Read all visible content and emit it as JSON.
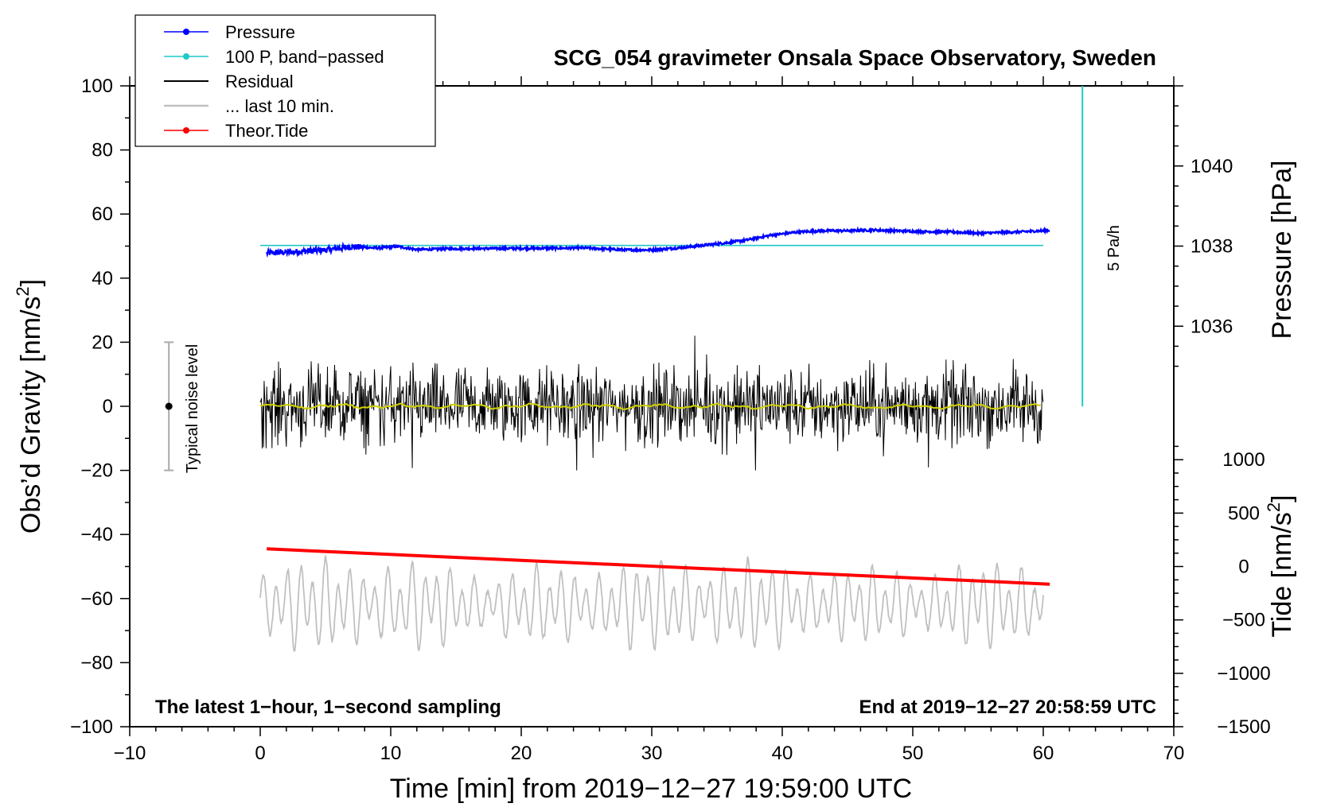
{
  "chart_data": {
    "type": "line",
    "title": "SCG_054 gravimeter Onsala Space Observatory, Sweden",
    "xlabel": "Time [min] from 2019−12−27 19:59:00 UTC",
    "ylabel_left_main": "Obs’d Gravity [nm/s",
    "ylabel_left_sup": "2",
    "ylabel_left_end": "]",
    "ylabel_right_pressure": "Pressure [hPa]",
    "ylabel_right_tide_main": "Tide [nm/s",
    "ylabel_right_tide_sup": "2",
    "ylabel_right_tide_end": "]",
    "xlim": [
      -10,
      70
    ],
    "ylim": [
      -100,
      100
    ],
    "xticks": [
      -10,
      0,
      10,
      20,
      30,
      40,
      50,
      60,
      70
    ],
    "xtick_labels": [
      "−10",
      "0",
      "10",
      "20",
      "30",
      "40",
      "50",
      "60",
      "70"
    ],
    "yticks": [
      -100,
      -80,
      -60,
      -40,
      -20,
      0,
      20,
      40,
      60,
      80,
      100
    ],
    "ytick_labels": [
      "−100",
      "−80",
      "−60",
      "−40",
      "−20",
      "0",
      "20",
      "40",
      "60",
      "80",
      "100"
    ],
    "pressure_axis": {
      "ticks": [
        1036,
        1038,
        1040
      ],
      "tick_labels": [
        "1036",
        "1038",
        "1040"
      ],
      "gravity_at_1038": 50,
      "gravity_per_hPa": 12.5
    },
    "tide_axis": {
      "ticks": [
        -1500,
        -1000,
        -500,
        0,
        500,
        1000
      ],
      "tick_labels": [
        "−1500",
        "−1000",
        "−500",
        "0",
        "500",
        "1000"
      ],
      "gravity_at_0": -50,
      "gravity_per_unit": 0.0333333
    },
    "series": [
      {
        "name": "Pressure",
        "color": "#0000ff",
        "x": [
          0.5,
          3,
          5,
          7,
          9,
          10.5,
          12,
          15,
          20,
          25,
          28,
          30,
          32,
          35,
          37,
          39,
          41,
          43,
          45,
          47,
          50,
          53,
          55,
          58,
          60.5
        ],
        "values": [
          47.8,
          48.3,
          48.8,
          49.8,
          49.4,
          49.9,
          48.9,
          49.2,
          49.3,
          49.4,
          48.8,
          48.8,
          49.4,
          50.7,
          51.7,
          53.3,
          54.3,
          54.8,
          54.8,
          55.0,
          54.6,
          54.4,
          54.0,
          54.4,
          54.9
        ]
      },
      {
        "name": "100 P, band−passed",
        "color": "#20c8c8",
        "x": [
          0,
          60
        ],
        "values": [
          50.2,
          50.2
        ]
      },
      {
        "name": "Residual",
        "color": "#000000",
        "x_start": 0,
        "x_end": 60,
        "amplitude": 6,
        "offset": 0
      },
      {
        "name": "... last 10 min.",
        "color": "#c0c0c0",
        "x_start": 0,
        "x_end": 60,
        "amplitude": 10,
        "offset": -62
      },
      {
        "name": "Theor.Tide",
        "color": "#ff0000",
        "x": [
          0.5,
          60.5
        ],
        "values": [
          -44.5,
          -55.5
        ]
      },
      {
        "name": "smoothed residual",
        "color": "#d0d000",
        "x_start": 0,
        "x_end": 60,
        "offset": 0
      }
    ],
    "legend": [
      "Pressure",
      "100 P, band−passed",
      "Residual",
      "... last 10 min.",
      "Theor.Tide"
    ],
    "legend_position": "top-left",
    "noise_bar": {
      "label": "Typical noise level",
      "x": -7,
      "center": 0,
      "half_range": 20
    },
    "scale_bar": {
      "label": "5 Pa/h",
      "x": 63,
      "from": 0,
      "to": 100
    },
    "annotation_left": "The latest 1−hour, 1−second sampling",
    "annotation_right": "End at 2019−12−27 20:58:59 UTC"
  }
}
